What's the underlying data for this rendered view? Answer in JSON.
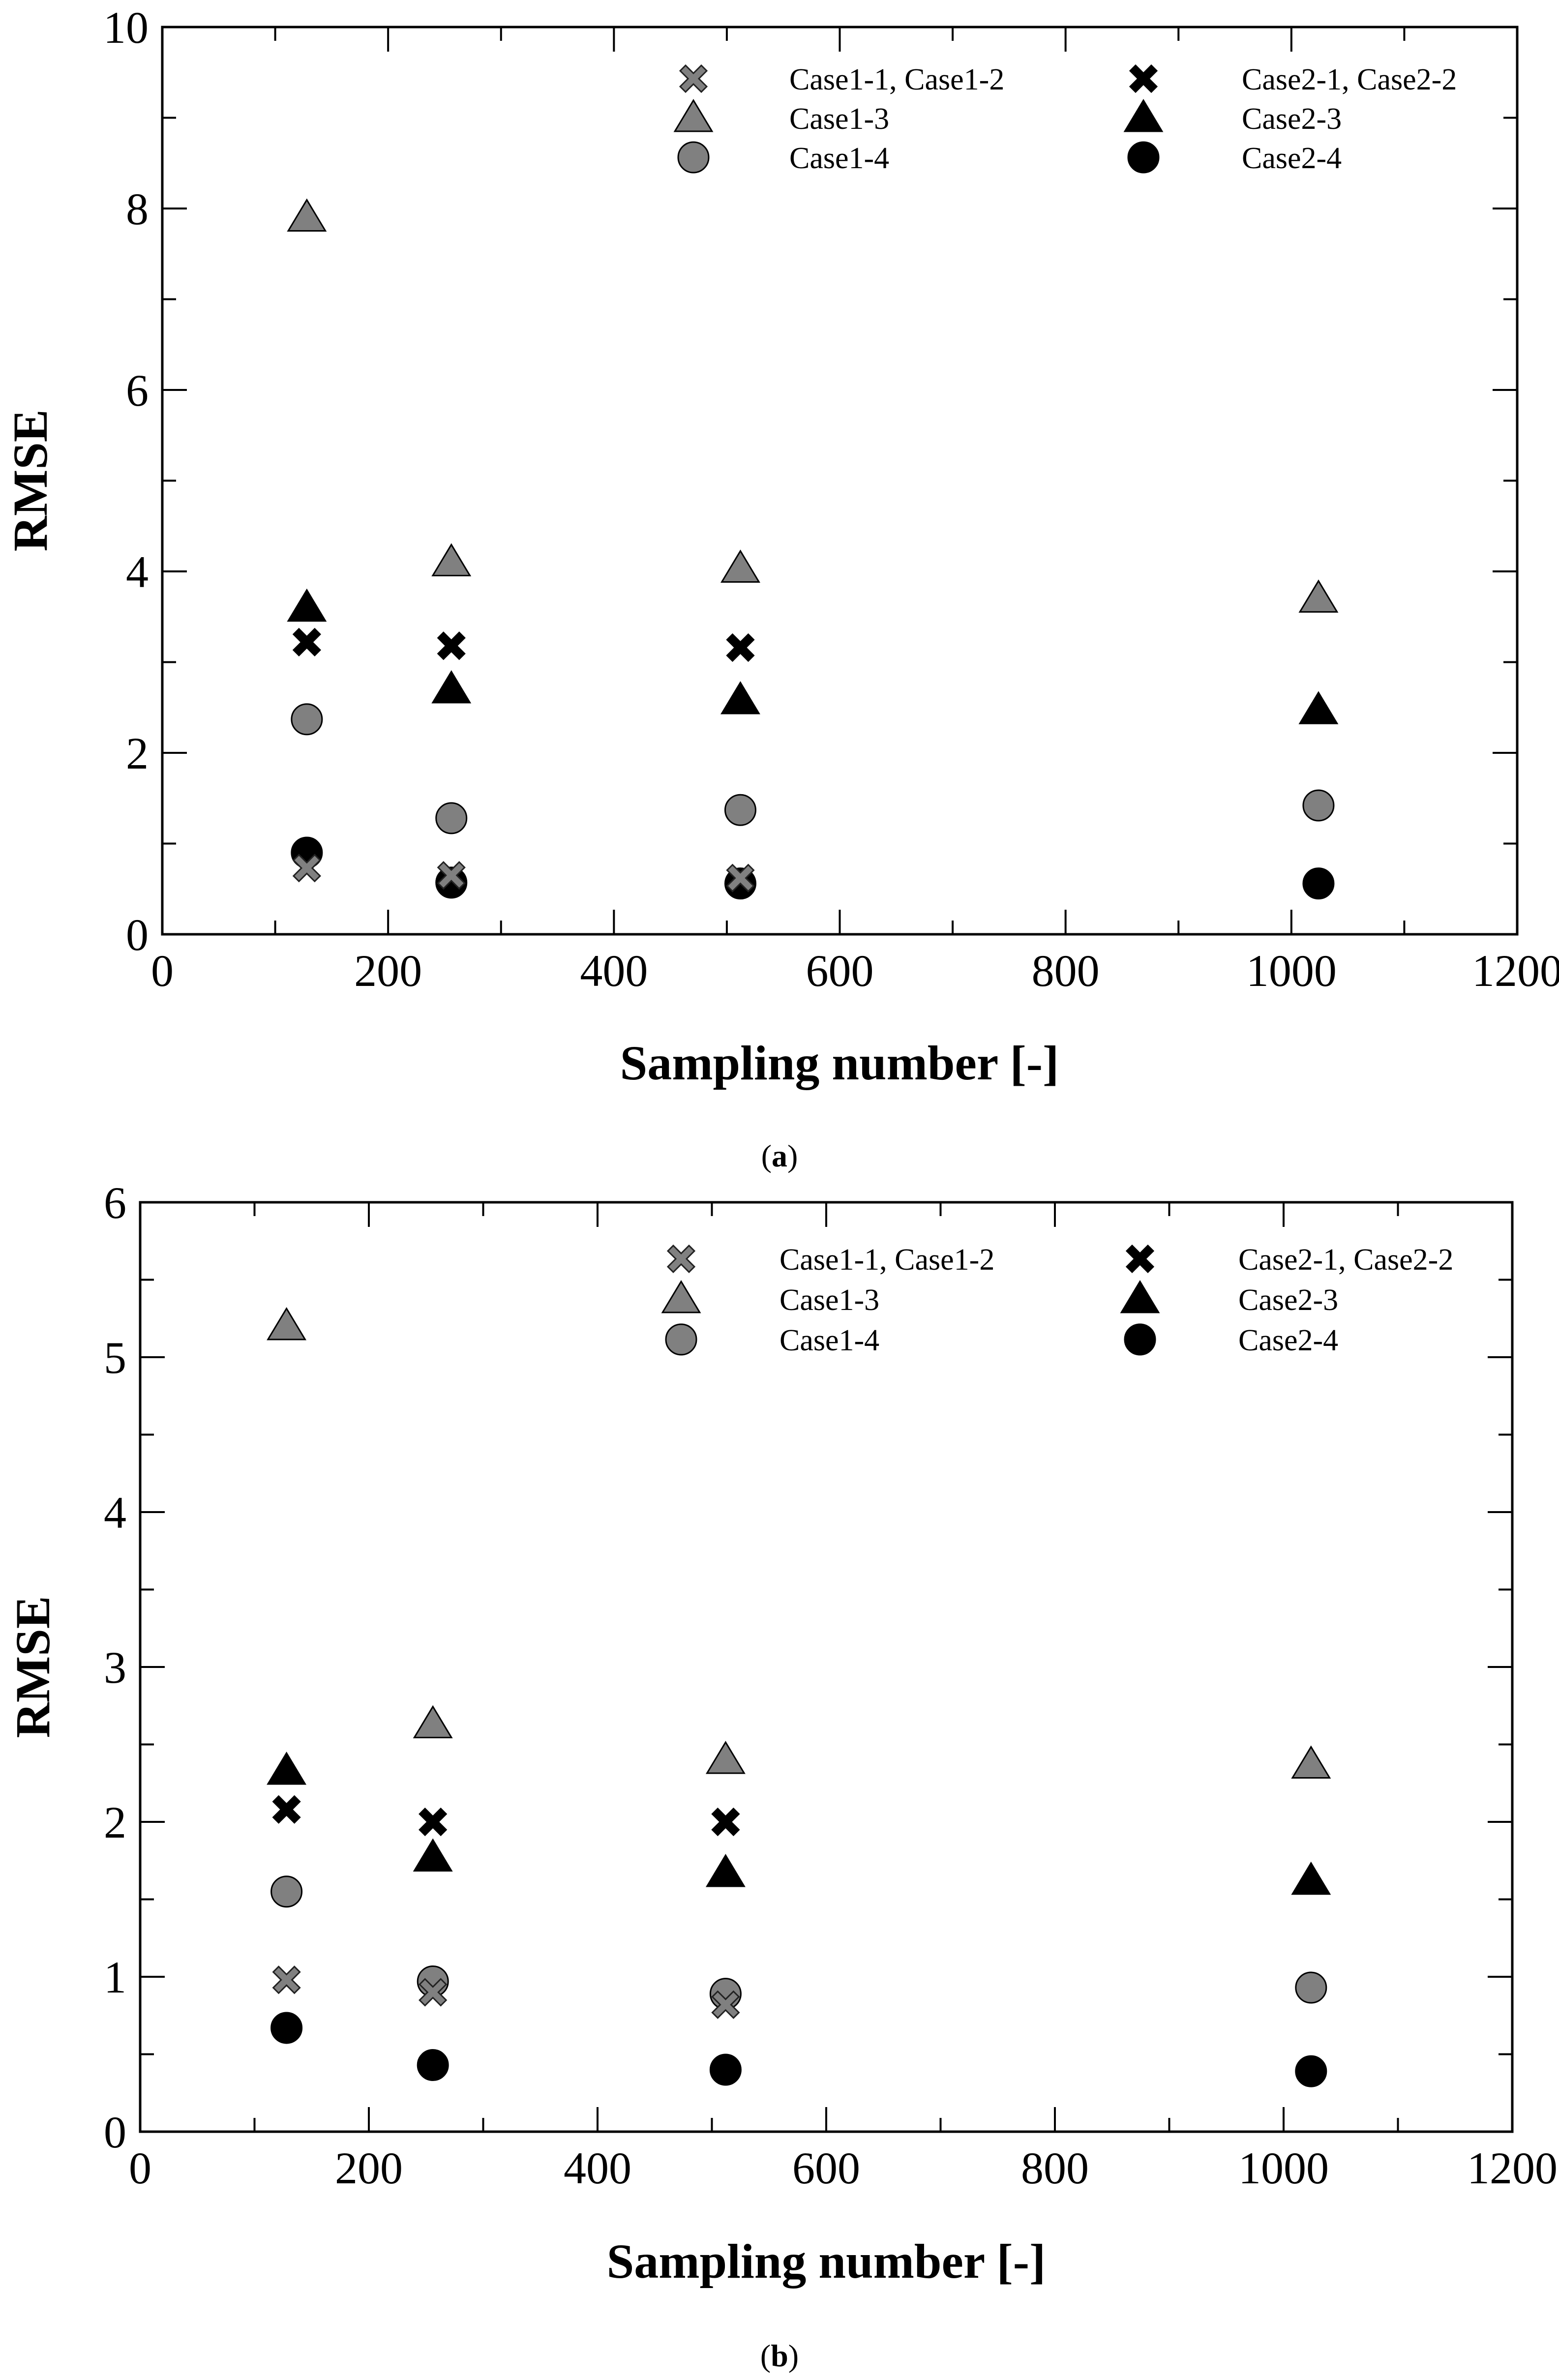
{
  "chart_data": [
    {
      "type": "scatter",
      "panel_label": "a",
      "xlabel": "Sampling number [-]",
      "ylabel": "RMSE",
      "xlim": [
        0,
        1200
      ],
      "ylim": [
        0,
        10
      ],
      "xticks": [
        0,
        200,
        400,
        600,
        800,
        1000,
        1200
      ],
      "yticks": [
        0,
        2,
        4,
        6,
        8,
        10
      ],
      "legend_position": "top-right",
      "grid": false,
      "series": [
        {
          "name": "Case1-1, Case1-2",
          "marker": "x",
          "color": "#808080",
          "x": [
            128,
            256,
            512
          ],
          "y": [
            0.73,
            0.65,
            0.62
          ]
        },
        {
          "name": "Case1-3",
          "marker": "triangle",
          "color": "#808080",
          "x": [
            128,
            256,
            512,
            1024
          ],
          "y": [
            7.9,
            4.1,
            4.03,
            3.7
          ]
        },
        {
          "name": "Case1-4",
          "marker": "circle",
          "color": "#808080",
          "x": [
            128,
            256,
            512,
            1024
          ],
          "y": [
            2.37,
            1.28,
            1.37,
            1.42
          ]
        },
        {
          "name": "Case2-1, Case2-2",
          "marker": "x",
          "color": "#000000",
          "x": [
            128,
            256,
            512
          ],
          "y": [
            3.22,
            3.18,
            3.16
          ]
        },
        {
          "name": "Case2-3",
          "marker": "triangle",
          "color": "#000000",
          "x": [
            128,
            256,
            512,
            1024
          ],
          "y": [
            3.6,
            2.7,
            2.58,
            2.47
          ]
        },
        {
          "name": "Case2-4",
          "marker": "circle",
          "color": "#000000",
          "x": [
            128,
            256,
            512,
            1024
          ],
          "y": [
            0.9,
            0.57,
            0.56,
            0.56
          ]
        }
      ]
    },
    {
      "type": "scatter",
      "panel_label": "b",
      "xlabel": "Sampling number [-]",
      "ylabel": "RMSE",
      "xlim": [
        0,
        1200
      ],
      "ylim": [
        0,
        6
      ],
      "xticks": [
        0,
        200,
        400,
        600,
        800,
        1000,
        1200
      ],
      "yticks": [
        0,
        1,
        2,
        3,
        4,
        5,
        6
      ],
      "legend_position": "top-right",
      "grid": false,
      "series": [
        {
          "name": "Case1-1, Case1-2",
          "marker": "x",
          "color": "#808080",
          "x": [
            128,
            256,
            512
          ],
          "y": [
            0.98,
            0.9,
            0.82
          ]
        },
        {
          "name": "Case1-3",
          "marker": "triangle",
          "color": "#808080",
          "x": [
            128,
            256,
            512,
            1024
          ],
          "y": [
            5.2,
            2.63,
            2.4,
            2.37
          ]
        },
        {
          "name": "Case1-4",
          "marker": "circle",
          "color": "#808080",
          "x": [
            128,
            256,
            512,
            1024
          ],
          "y": [
            1.55,
            0.97,
            0.89,
            0.93
          ]
        },
        {
          "name": "Case2-1, Case2-2",
          "marker": "x",
          "color": "#000000",
          "x": [
            128,
            256,
            512
          ],
          "y": [
            2.08,
            2.0,
            2.0
          ]
        },
        {
          "name": "Case2-3",
          "marker": "triangle",
          "color": "#000000",
          "x": [
            128,
            256,
            512,
            1024
          ],
          "y": [
            2.33,
            1.77,
            1.67,
            1.62
          ]
        },
        {
          "name": "Case2-4",
          "marker": "circle",
          "color": "#000000",
          "x": [
            128,
            256,
            512,
            1024
          ],
          "y": [
            0.67,
            0.43,
            0.4,
            0.39
          ]
        }
      ]
    }
  ]
}
